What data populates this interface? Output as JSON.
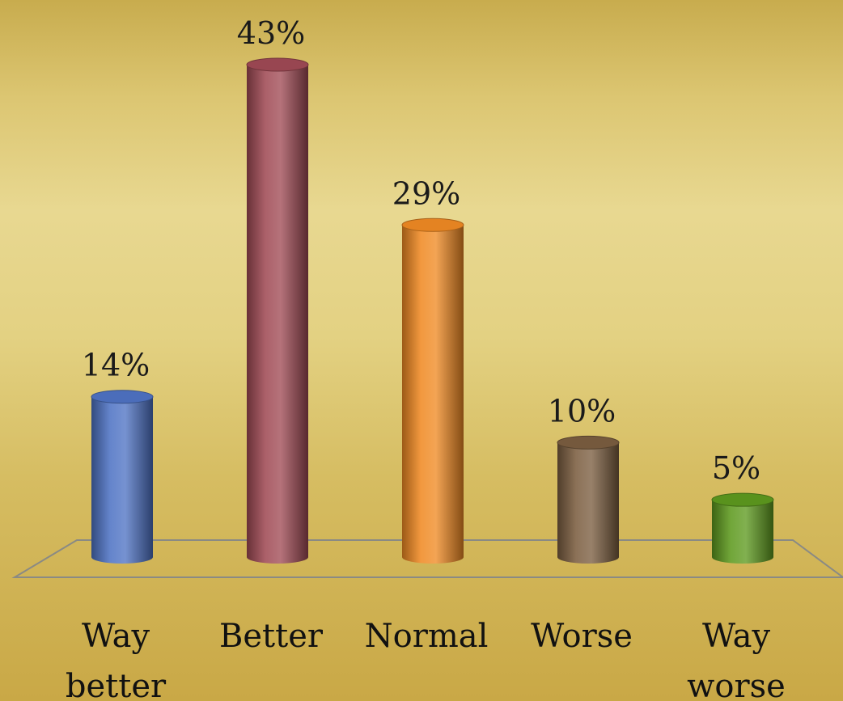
{
  "chart_data": {
    "type": "bar",
    "categories": [
      "Way better",
      "Better",
      "Normal",
      "Worse",
      "Way worse"
    ],
    "category_lines": [
      [
        "Way",
        "better"
      ],
      [
        "Better"
      ],
      [
        "Normal"
      ],
      [
        "Worse"
      ],
      [
        "Way",
        "worse"
      ]
    ],
    "values": [
      14,
      43,
      29,
      10,
      5
    ],
    "value_labels": [
      "14%",
      "43%",
      "29%",
      "10%",
      "5%"
    ],
    "colors": [
      "#4f73c4",
      "#a04a55",
      "#f08a24",
      "#7b5e40",
      "#5e9a1e"
    ],
    "ylim": [
      0,
      43
    ],
    "grid": false,
    "legend": "none",
    "style": "3d-cylinder"
  }
}
